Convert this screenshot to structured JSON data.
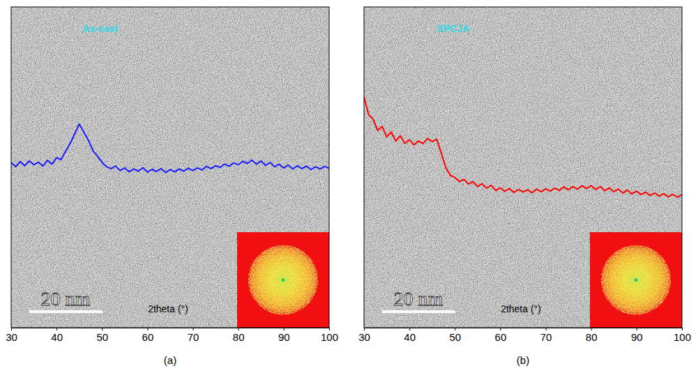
{
  "chart_data": [
    {
      "type": "line",
      "title": "As-cast",
      "label": "(a)",
      "x_label": "2theta (°)",
      "annotations": [
        "20 nm"
      ],
      "x": [
        30,
        31,
        32,
        33,
        34,
        35,
        36,
        37,
        38,
        39,
        40,
        41,
        42,
        43,
        44,
        45,
        46,
        47,
        48,
        49,
        50,
        51,
        52,
        53,
        54,
        55,
        56,
        57,
        58,
        59,
        60,
        61,
        62,
        63,
        64,
        65,
        66,
        67,
        68,
        69,
        70,
        71,
        72,
        73,
        74,
        75,
        76,
        77,
        78,
        79,
        80,
        81,
        82,
        83,
        84,
        85,
        86,
        87,
        88,
        89,
        90,
        91,
        92,
        93,
        94,
        95,
        96,
        97,
        98,
        99,
        100
      ],
      "values": [
        51.5,
        50.2,
        51.8,
        50.5,
        52.0,
        50.8,
        51.6,
        50.4,
        52.2,
        51.0,
        53.0,
        52.4,
        55.0,
        57.5,
        60.5,
        63.5,
        61.0,
        58.5,
        55.2,
        53.5,
        51.5,
        50.2,
        49.6,
        50.4,
        49.0,
        49.8,
        48.6,
        49.5,
        48.8,
        49.9,
        48.5,
        49.4,
        48.7,
        49.6,
        48.4,
        49.3,
        48.6,
        49.5,
        48.8,
        49.7,
        49.0,
        49.8,
        49.2,
        50.3,
        49.6,
        50.5,
        50.0,
        51.0,
        50.3,
        51.4,
        50.8,
        51.9,
        51.2,
        52.3,
        51.0,
        52.0,
        50.6,
        51.5,
        50.2,
        51.0,
        49.8,
        50.7,
        49.5,
        50.5,
        49.6,
        50.4,
        49.3,
        50.2,
        49.5,
        50.3,
        49.7
      ],
      "color": "#1a1aff",
      "xlim": [
        30,
        100
      ],
      "ylim": [
        0,
        100
      ],
      "xticks": [
        30,
        40,
        50,
        60,
        70,
        80,
        90,
        100
      ],
      "tick_labels": "x"
    },
    {
      "type": "line",
      "title": "SPCJA",
      "label": "(b)",
      "x_label": "2theta (°)",
      "annotations": [
        "20 nm"
      ],
      "x": [
        30,
        31,
        32,
        33,
        34,
        35,
        36,
        37,
        38,
        39,
        40,
        41,
        42,
        43,
        44,
        45,
        46,
        47,
        48,
        49,
        50,
        51,
        52,
        53,
        54,
        55,
        56,
        57,
        58,
        59,
        60,
        61,
        62,
        63,
        64,
        65,
        66,
        67,
        68,
        69,
        70,
        71,
        72,
        73,
        74,
        75,
        76,
        77,
        78,
        79,
        80,
        81,
        82,
        83,
        84,
        85,
        86,
        87,
        88,
        89,
        90,
        91,
        92,
        93,
        94,
        95,
        96,
        97,
        98,
        99,
        100
      ],
      "values": [
        72.0,
        66.5,
        65.0,
        61.5,
        62.8,
        59.5,
        61.0,
        58.2,
        59.8,
        57.5,
        58.6,
        57.0,
        58.2,
        57.4,
        59.0,
        58.0,
        58.8,
        54.5,
        50.0,
        47.5,
        46.8,
        45.6,
        46.2,
        44.8,
        45.5,
        44.0,
        44.9,
        43.5,
        44.4,
        42.8,
        43.6,
        42.5,
        43.4,
        42.2,
        43.1,
        42.3,
        43.0,
        42.1,
        43.2,
        42.4,
        43.3,
        42.6,
        43.5,
        42.8,
        43.9,
        43.0,
        44.0,
        43.2,
        44.2,
        43.4,
        44.3,
        43.1,
        44.0,
        42.7,
        43.6,
        42.4,
        43.2,
        42.0,
        42.9,
        41.7,
        42.6,
        41.5,
        42.3,
        41.2,
        42.0,
        41.0,
        41.8,
        40.8,
        41.6,
        40.7,
        41.5
      ],
      "color": "#ff0000",
      "xlim": [
        30,
        100
      ],
      "ylim": [
        0,
        100
      ],
      "xticks": [
        30,
        40,
        50,
        60,
        70,
        80,
        90,
        100
      ],
      "tick_labels": "x"
    }
  ]
}
